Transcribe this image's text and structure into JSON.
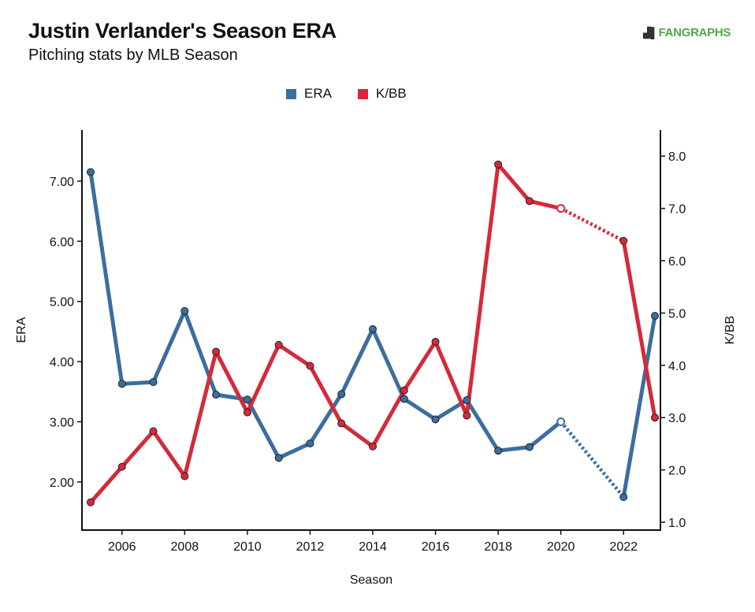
{
  "header": {
    "title": "Justin Verlander's Season ERA",
    "subtitle": "Pitching stats by MLB Season",
    "brand": "FANGRAPHS"
  },
  "legend": {
    "items": [
      {
        "label": "ERA",
        "color": "#3b6e9e"
      },
      {
        "label": "K/BB",
        "color": "#d42a3a"
      }
    ]
  },
  "chart_data": {
    "type": "line",
    "title": "Justin Verlander's Season ERA",
    "subtitle": "Pitching stats by MLB Season",
    "xlabel": "Season",
    "ylabel_left": "ERA",
    "ylabel_right": "K/BB",
    "xlim": [
      2005,
      2023
    ],
    "ylim_left": [
      1.2,
      7.85
    ],
    "ylim_right": [
      0.85,
      8.5
    ],
    "x_ticks": [
      2006,
      2008,
      2010,
      2012,
      2014,
      2016,
      2018,
      2020,
      2022
    ],
    "y_left_ticks": [
      "2.00",
      "3.00",
      "4.00",
      "5.00",
      "6.00",
      "7.00"
    ],
    "y_right_ticks": [
      "1.0",
      "2.0",
      "3.0",
      "4.0",
      "5.0",
      "6.0",
      "7.0",
      "8.0"
    ],
    "grid": false,
    "legend_position": "top-center",
    "series": [
      {
        "name": "ERA",
        "axis": "left",
        "color": "#3b6e9e",
        "points": [
          {
            "x": 2005,
            "y": 7.15
          },
          {
            "x": 2006,
            "y": 3.63
          },
          {
            "x": 2007,
            "y": 3.66
          },
          {
            "x": 2008,
            "y": 4.84
          },
          {
            "x": 2009,
            "y": 3.45
          },
          {
            "x": 2010,
            "y": 3.37
          },
          {
            "x": 2011,
            "y": 2.4
          },
          {
            "x": 2012,
            "y": 2.64
          },
          {
            "x": 2013,
            "y": 3.46
          },
          {
            "x": 2014,
            "y": 4.54
          },
          {
            "x": 2015,
            "y": 3.38
          },
          {
            "x": 2016,
            "y": 3.04
          },
          {
            "x": 2017,
            "y": 3.36
          },
          {
            "x": 2018,
            "y": 2.52
          },
          {
            "x": 2019,
            "y": 2.58
          },
          {
            "x": 2020,
            "y": 3.0,
            "hollow": true
          },
          {
            "x": 2022,
            "y": 1.75
          },
          {
            "x": 2023,
            "y": 4.76
          }
        ]
      },
      {
        "name": "K/BB",
        "axis": "right",
        "color": "#d42a3a",
        "points": [
          {
            "x": 2005,
            "y": 1.38
          },
          {
            "x": 2006,
            "y": 2.06
          },
          {
            "x": 2007,
            "y": 2.74
          },
          {
            "x": 2008,
            "y": 1.88
          },
          {
            "x": 2009,
            "y": 4.26
          },
          {
            "x": 2010,
            "y": 3.1
          },
          {
            "x": 2011,
            "y": 4.39
          },
          {
            "x": 2012,
            "y": 3.99
          },
          {
            "x": 2013,
            "y": 2.89
          },
          {
            "x": 2014,
            "y": 2.45
          },
          {
            "x": 2015,
            "y": 3.52
          },
          {
            "x": 2016,
            "y": 4.45
          },
          {
            "x": 2017,
            "y": 3.04
          },
          {
            "x": 2018,
            "y": 7.84
          },
          {
            "x": 2019,
            "y": 7.14
          },
          {
            "x": 2020,
            "y": 7.0,
            "hollow": true
          },
          {
            "x": 2022,
            "y": 6.38
          },
          {
            "x": 2023,
            "y": 3.0
          }
        ]
      }
    ]
  }
}
